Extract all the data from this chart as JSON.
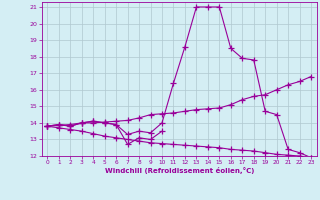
{
  "xlabel": "Windchill (Refroidissement éolien,°C)",
  "x_hours": [
    0,
    1,
    2,
    3,
    4,
    5,
    6,
    7,
    8,
    9,
    10,
    11,
    12,
    13,
    14,
    15,
    16,
    17,
    18,
    19,
    20,
    21,
    22,
    23
  ],
  "line1": [
    13.8,
    13.9,
    13.8,
    14.0,
    14.1,
    14.0,
    13.9,
    13.3,
    13.5,
    13.4,
    14.0,
    16.4,
    18.6,
    21.0,
    21.0,
    21.0,
    18.5,
    17.9,
    17.8,
    14.7,
    14.5,
    12.4,
    12.2,
    11.9
  ],
  "line2_x": [
    0,
    1,
    2,
    3,
    4,
    5,
    6,
    7,
    8,
    9,
    10
  ],
  "line2_y": [
    13.8,
    13.9,
    13.8,
    14.0,
    14.1,
    14.0,
    13.9,
    12.7,
    13.1,
    13.0,
    13.5
  ],
  "line3": [
    13.8,
    13.85,
    13.9,
    14.0,
    14.0,
    14.05,
    14.1,
    14.15,
    14.3,
    14.5,
    14.55,
    14.6,
    14.7,
    14.8,
    14.85,
    14.9,
    15.1,
    15.4,
    15.6,
    15.7,
    16.0,
    16.3,
    16.5,
    16.8
  ],
  "line4": [
    13.8,
    13.7,
    13.6,
    13.5,
    13.35,
    13.2,
    13.1,
    13.0,
    12.9,
    12.8,
    12.75,
    12.7,
    12.65,
    12.6,
    12.55,
    12.5,
    12.4,
    12.35,
    12.3,
    12.2,
    12.1,
    12.05,
    12.0,
    11.85
  ],
  "line_color": "#990099",
  "bg_color": "#d4eef4",
  "grid_color": "#b0c8d0",
  "ylim": [
    12,
    21
  ],
  "xlim": [
    0,
    23
  ],
  "yticks": [
    12,
    13,
    14,
    15,
    16,
    17,
    18,
    19,
    20,
    21
  ],
  "xticks": [
    0,
    1,
    2,
    3,
    4,
    5,
    6,
    7,
    8,
    9,
    10,
    11,
    12,
    13,
    14,
    15,
    16,
    17,
    18,
    19,
    20,
    21,
    22,
    23
  ]
}
